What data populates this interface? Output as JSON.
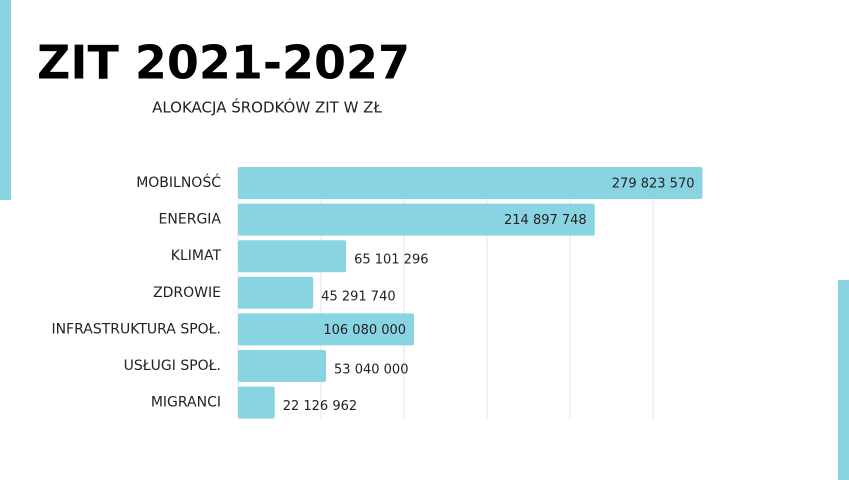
{
  "chart_data": {
    "type": "hbar",
    "title": "ZIT 2021-2027",
    "subtitle": "ALOKACJA ŚRODKÓW ZIT W ZŁ",
    "categories": [
      "MOBILNOŚĆ",
      "ENERGIA",
      "KLIMAT",
      "ZDROWIE",
      "INFRASTRUKTURA SPOŁ.",
      "USŁUGI SPOŁ.",
      "MIGRANCI"
    ],
    "values": [
      279823570,
      214897748,
      65101296,
      45291740,
      106080000,
      53040000,
      22126962
    ],
    "value_labels": [
      "279 823 570",
      "214 897 748",
      "65 101 296",
      "45 291 740",
      "106 080 000",
      "53 040 000",
      "22 126 962"
    ],
    "color": "#89d4e3",
    "xlim": [
      0,
      300000000
    ],
    "xticks": [
      0,
      50000000,
      100000000,
      150000000,
      200000000,
      250000000
    ],
    "grid": true
  }
}
